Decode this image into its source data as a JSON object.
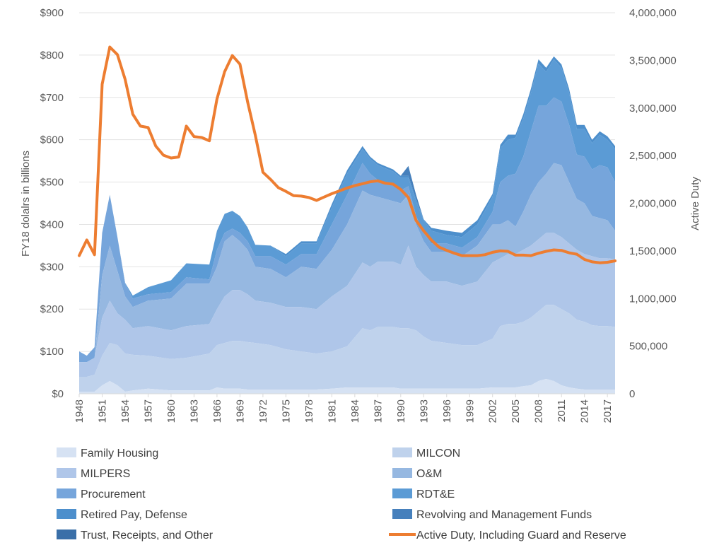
{
  "chart_data": {
    "type": "area",
    "ylabel": "FY18 dolalrs in billions",
    "y2label": "Active Duty",
    "ylim": [
      0,
      900
    ],
    "y2lim": [
      0,
      4000000
    ],
    "y_ticks": [
      "$0",
      "$100",
      "$200",
      "$300",
      "$400",
      "$500",
      "$600",
      "$700",
      "$800",
      "$900"
    ],
    "y2_ticks": [
      "0",
      "500,000",
      "1,000,000",
      "1,500,000",
      "2,000,000",
      "2,500,000",
      "3,000,000",
      "3,500,000",
      "4,000,000"
    ],
    "x_ticks": [
      "1948",
      "1951",
      "1954",
      "1957",
      "1960",
      "1963",
      "1966",
      "1969",
      "1972",
      "1975",
      "1978",
      "1981",
      "1984",
      "1987",
      "1990",
      "1993",
      "1996",
      "1999",
      "2002",
      "2005",
      "2008",
      "2011",
      "2014",
      "2017"
    ],
    "x_start": 1948,
    "x_end": 2018,
    "grid": true,
    "legend_position": "bottom",
    "stack_keyframes": [
      [
        1948,
        5,
        40,
        75,
        75,
        100,
        100,
        100,
        100,
        100
      ],
      [
        1949,
        5,
        40,
        75,
        75,
        90,
        90,
        90,
        90,
        90
      ],
      [
        1950,
        5,
        45,
        85,
        85,
        110,
        110,
        110,
        110,
        110
      ],
      [
        1951,
        20,
        90,
        180,
        280,
        380,
        380,
        380,
        380,
        380
      ],
      [
        1952,
        30,
        120,
        220,
        350,
        470,
        470,
        470,
        470,
        470
      ],
      [
        1953,
        20,
        115,
        190,
        290,
        370,
        370,
        370,
        370,
        370
      ],
      [
        1954,
        5,
        95,
        175,
        230,
        260,
        262,
        262,
        262,
        262
      ],
      [
        1955,
        8,
        92,
        155,
        205,
        225,
        232,
        232,
        232,
        232
      ],
      [
        1957,
        12,
        90,
        160,
        220,
        235,
        252,
        252,
        252,
        252
      ],
      [
        1960,
        8,
        82,
        150,
        225,
        240,
        268,
        268,
        268,
        268
      ],
      [
        1962,
        8,
        85,
        160,
        260,
        275,
        308,
        308,
        308,
        308
      ],
      [
        1965,
        8,
        95,
        165,
        260,
        270,
        305,
        305,
        305,
        305
      ],
      [
        1966,
        15,
        115,
        200,
        300,
        340,
        385,
        385,
        385,
        385
      ],
      [
        1967,
        12,
        120,
        230,
        360,
        380,
        425,
        425,
        425,
        425
      ],
      [
        1968,
        12,
        125,
        245,
        375,
        390,
        432,
        432,
        432,
        432
      ],
      [
        1969,
        12,
        125,
        245,
        360,
        380,
        420,
        420,
        420,
        420
      ],
      [
        1970,
        10,
        122,
        235,
        340,
        360,
        393,
        393,
        393,
        393
      ],
      [
        1971,
        10,
        120,
        220,
        300,
        325,
        352,
        352,
        352,
        352
      ],
      [
        1973,
        10,
        115,
        215,
        295,
        325,
        350,
        350,
        350,
        350
      ],
      [
        1975,
        10,
        105,
        205,
        275,
        305,
        325,
        330,
        330,
        330
      ],
      [
        1977,
        10,
        100,
        205,
        300,
        330,
        355,
        360,
        360,
        360
      ],
      [
        1979,
        10,
        95,
        200,
        295,
        330,
        355,
        360,
        360,
        360
      ],
      [
        1981,
        12,
        100,
        230,
        340,
        400,
        440,
        448,
        448,
        448
      ],
      [
        1983,
        15,
        112,
        255,
        400,
        470,
        520,
        528,
        528,
        528
      ],
      [
        1985,
        15,
        155,
        310,
        480,
        545,
        578,
        585,
        585,
        585
      ],
      [
        1986,
        15,
        150,
        300,
        470,
        520,
        555,
        560,
        560,
        560
      ],
      [
        1987,
        15,
        158,
        312,
        465,
        505,
        540,
        545,
        545,
        545
      ],
      [
        1989,
        15,
        158,
        312,
        455,
        495,
        525,
        530,
        530,
        530
      ],
      [
        1990,
        12,
        155,
        305,
        450,
        480,
        510,
        515,
        515,
        515
      ],
      [
        1991,
        12,
        155,
        350,
        470,
        490,
        510,
        515,
        538,
        538
      ],
      [
        1992,
        12,
        150,
        300,
        400,
        420,
        455,
        460,
        470,
        470
      ],
      [
        1993,
        12,
        135,
        280,
        360,
        380,
        410,
        412,
        412,
        412
      ],
      [
        1994,
        12,
        125,
        265,
        335,
        355,
        385,
        392,
        392,
        392
      ],
      [
        1996,
        12,
        120,
        265,
        335,
        355,
        375,
        385,
        385,
        385
      ],
      [
        1998,
        12,
        115,
        255,
        325,
        345,
        370,
        380,
        380,
        380
      ],
      [
        2000,
        12,
        115,
        265,
        350,
        370,
        400,
        410,
        410,
        410
      ],
      [
        2002,
        15,
        130,
        310,
        400,
        430,
        465,
        472,
        472,
        472
      ],
      [
        2003,
        15,
        160,
        320,
        400,
        500,
        580,
        588,
        588,
        588
      ],
      [
        2004,
        15,
        165,
        330,
        410,
        515,
        600,
        612,
        612,
        612
      ],
      [
        2005,
        15,
        165,
        330,
        395,
        520,
        605,
        612,
        612,
        612
      ],
      [
        2006,
        18,
        170,
        340,
        430,
        560,
        650,
        660,
        660,
        660
      ],
      [
        2007,
        20,
        180,
        350,
        470,
        620,
        710,
        720,
        720,
        720
      ],
      [
        2008,
        30,
        195,
        365,
        500,
        680,
        780,
        790,
        790,
        790
      ],
      [
        2009,
        35,
        210,
        380,
        520,
        680,
        760,
        770,
        770,
        770
      ],
      [
        2010,
        30,
        210,
        380,
        545,
        700,
        790,
        797,
        797,
        797
      ],
      [
        2011,
        20,
        200,
        370,
        540,
        690,
        770,
        778,
        778,
        778
      ],
      [
        2012,
        15,
        190,
        355,
        500,
        635,
        710,
        720,
        720,
        720
      ],
      [
        2013,
        12,
        175,
        340,
        460,
        565,
        625,
        635,
        635,
        635
      ],
      [
        2014,
        10,
        170,
        330,
        450,
        560,
        625,
        635,
        635,
        635
      ],
      [
        2015,
        10,
        162,
        325,
        420,
        530,
        592,
        600,
        600,
        600
      ],
      [
        2016,
        10,
        160,
        320,
        415,
        540,
        612,
        620,
        620,
        620
      ],
      [
        2017,
        10,
        160,
        320,
        410,
        535,
        600,
        608,
        608,
        608
      ],
      [
        2018,
        10,
        158,
        318,
        385,
        500,
        578,
        585,
        585,
        585
      ]
    ],
    "series": [
      {
        "name": "Family Housing",
        "color": "#D6E2F3"
      },
      {
        "name": "MILCON",
        "color": "#BFD2EC"
      },
      {
        "name": "MILPERS",
        "color": "#AFC6E9"
      },
      {
        "name": "O&M",
        "color": "#96B8E1"
      },
      {
        "name": "Procurement",
        "color": "#76A5DB"
      },
      {
        "name": "RDT&E",
        "color": "#5B9BD5"
      },
      {
        "name": "Retired Pay, Defense",
        "color": "#4D8FCC"
      },
      {
        "name": "Revolving and Management Funds",
        "color": "#4680BC"
      },
      {
        "name": "Trust, Receipts, and Other",
        "color": "#3A6FA8"
      }
    ],
    "line_series": {
      "name": "Active Duty, Including Guard and Reserve",
      "color": "#ED7D31",
      "points": [
        [
          1948,
          1450000
        ],
        [
          1949,
          1615000
        ],
        [
          1950,
          1460000
        ],
        [
          1951,
          3250000
        ],
        [
          1952,
          3640000
        ],
        [
          1953,
          3560000
        ],
        [
          1954,
          3300000
        ],
        [
          1955,
          2935000
        ],
        [
          1956,
          2810000
        ],
        [
          1957,
          2795000
        ],
        [
          1958,
          2600000
        ],
        [
          1959,
          2505000
        ],
        [
          1960,
          2475000
        ],
        [
          1961,
          2485000
        ],
        [
          1962,
          2810000
        ],
        [
          1963,
          2700000
        ],
        [
          1964,
          2690000
        ],
        [
          1965,
          2655000
        ],
        [
          1966,
          3095000
        ],
        [
          1967,
          3380000
        ],
        [
          1968,
          3550000
        ],
        [
          1969,
          3460000
        ],
        [
          1970,
          3065000
        ],
        [
          1971,
          2715000
        ],
        [
          1972,
          2325000
        ],
        [
          1973,
          2250000
        ],
        [
          1974,
          2165000
        ],
        [
          1975,
          2125000
        ],
        [
          1976,
          2080000
        ],
        [
          1977,
          2075000
        ],
        [
          1978,
          2060000
        ],
        [
          1979,
          2030000
        ],
        [
          1980,
          2065000
        ],
        [
          1981,
          2100000
        ],
        [
          1982,
          2130000
        ],
        [
          1983,
          2160000
        ],
        [
          1984,
          2185000
        ],
        [
          1985,
          2205000
        ],
        [
          1986,
          2225000
        ],
        [
          1987,
          2235000
        ],
        [
          1988,
          2210000
        ],
        [
          1989,
          2200000
        ],
        [
          1990,
          2145000
        ],
        [
          1991,
          2060000
        ],
        [
          1992,
          1820000
        ],
        [
          1993,
          1710000
        ],
        [
          1994,
          1615000
        ],
        [
          1995,
          1540000
        ],
        [
          1996,
          1505000
        ],
        [
          1997,
          1475000
        ],
        [
          1998,
          1450000
        ],
        [
          1999,
          1450000
        ],
        [
          2000,
          1450000
        ],
        [
          2001,
          1460000
        ],
        [
          2002,
          1485000
        ],
        [
          2003,
          1500000
        ],
        [
          2004,
          1495000
        ],
        [
          2005,
          1455000
        ],
        [
          2006,
          1455000
        ],
        [
          2007,
          1450000
        ],
        [
          2008,
          1475000
        ],
        [
          2009,
          1495000
        ],
        [
          2010,
          1510000
        ],
        [
          2011,
          1505000
        ],
        [
          2012,
          1480000
        ],
        [
          2013,
          1465000
        ],
        [
          2014,
          1410000
        ],
        [
          2015,
          1385000
        ],
        [
          2016,
          1375000
        ],
        [
          2017,
          1380000
        ],
        [
          2018,
          1395000
        ]
      ]
    }
  }
}
